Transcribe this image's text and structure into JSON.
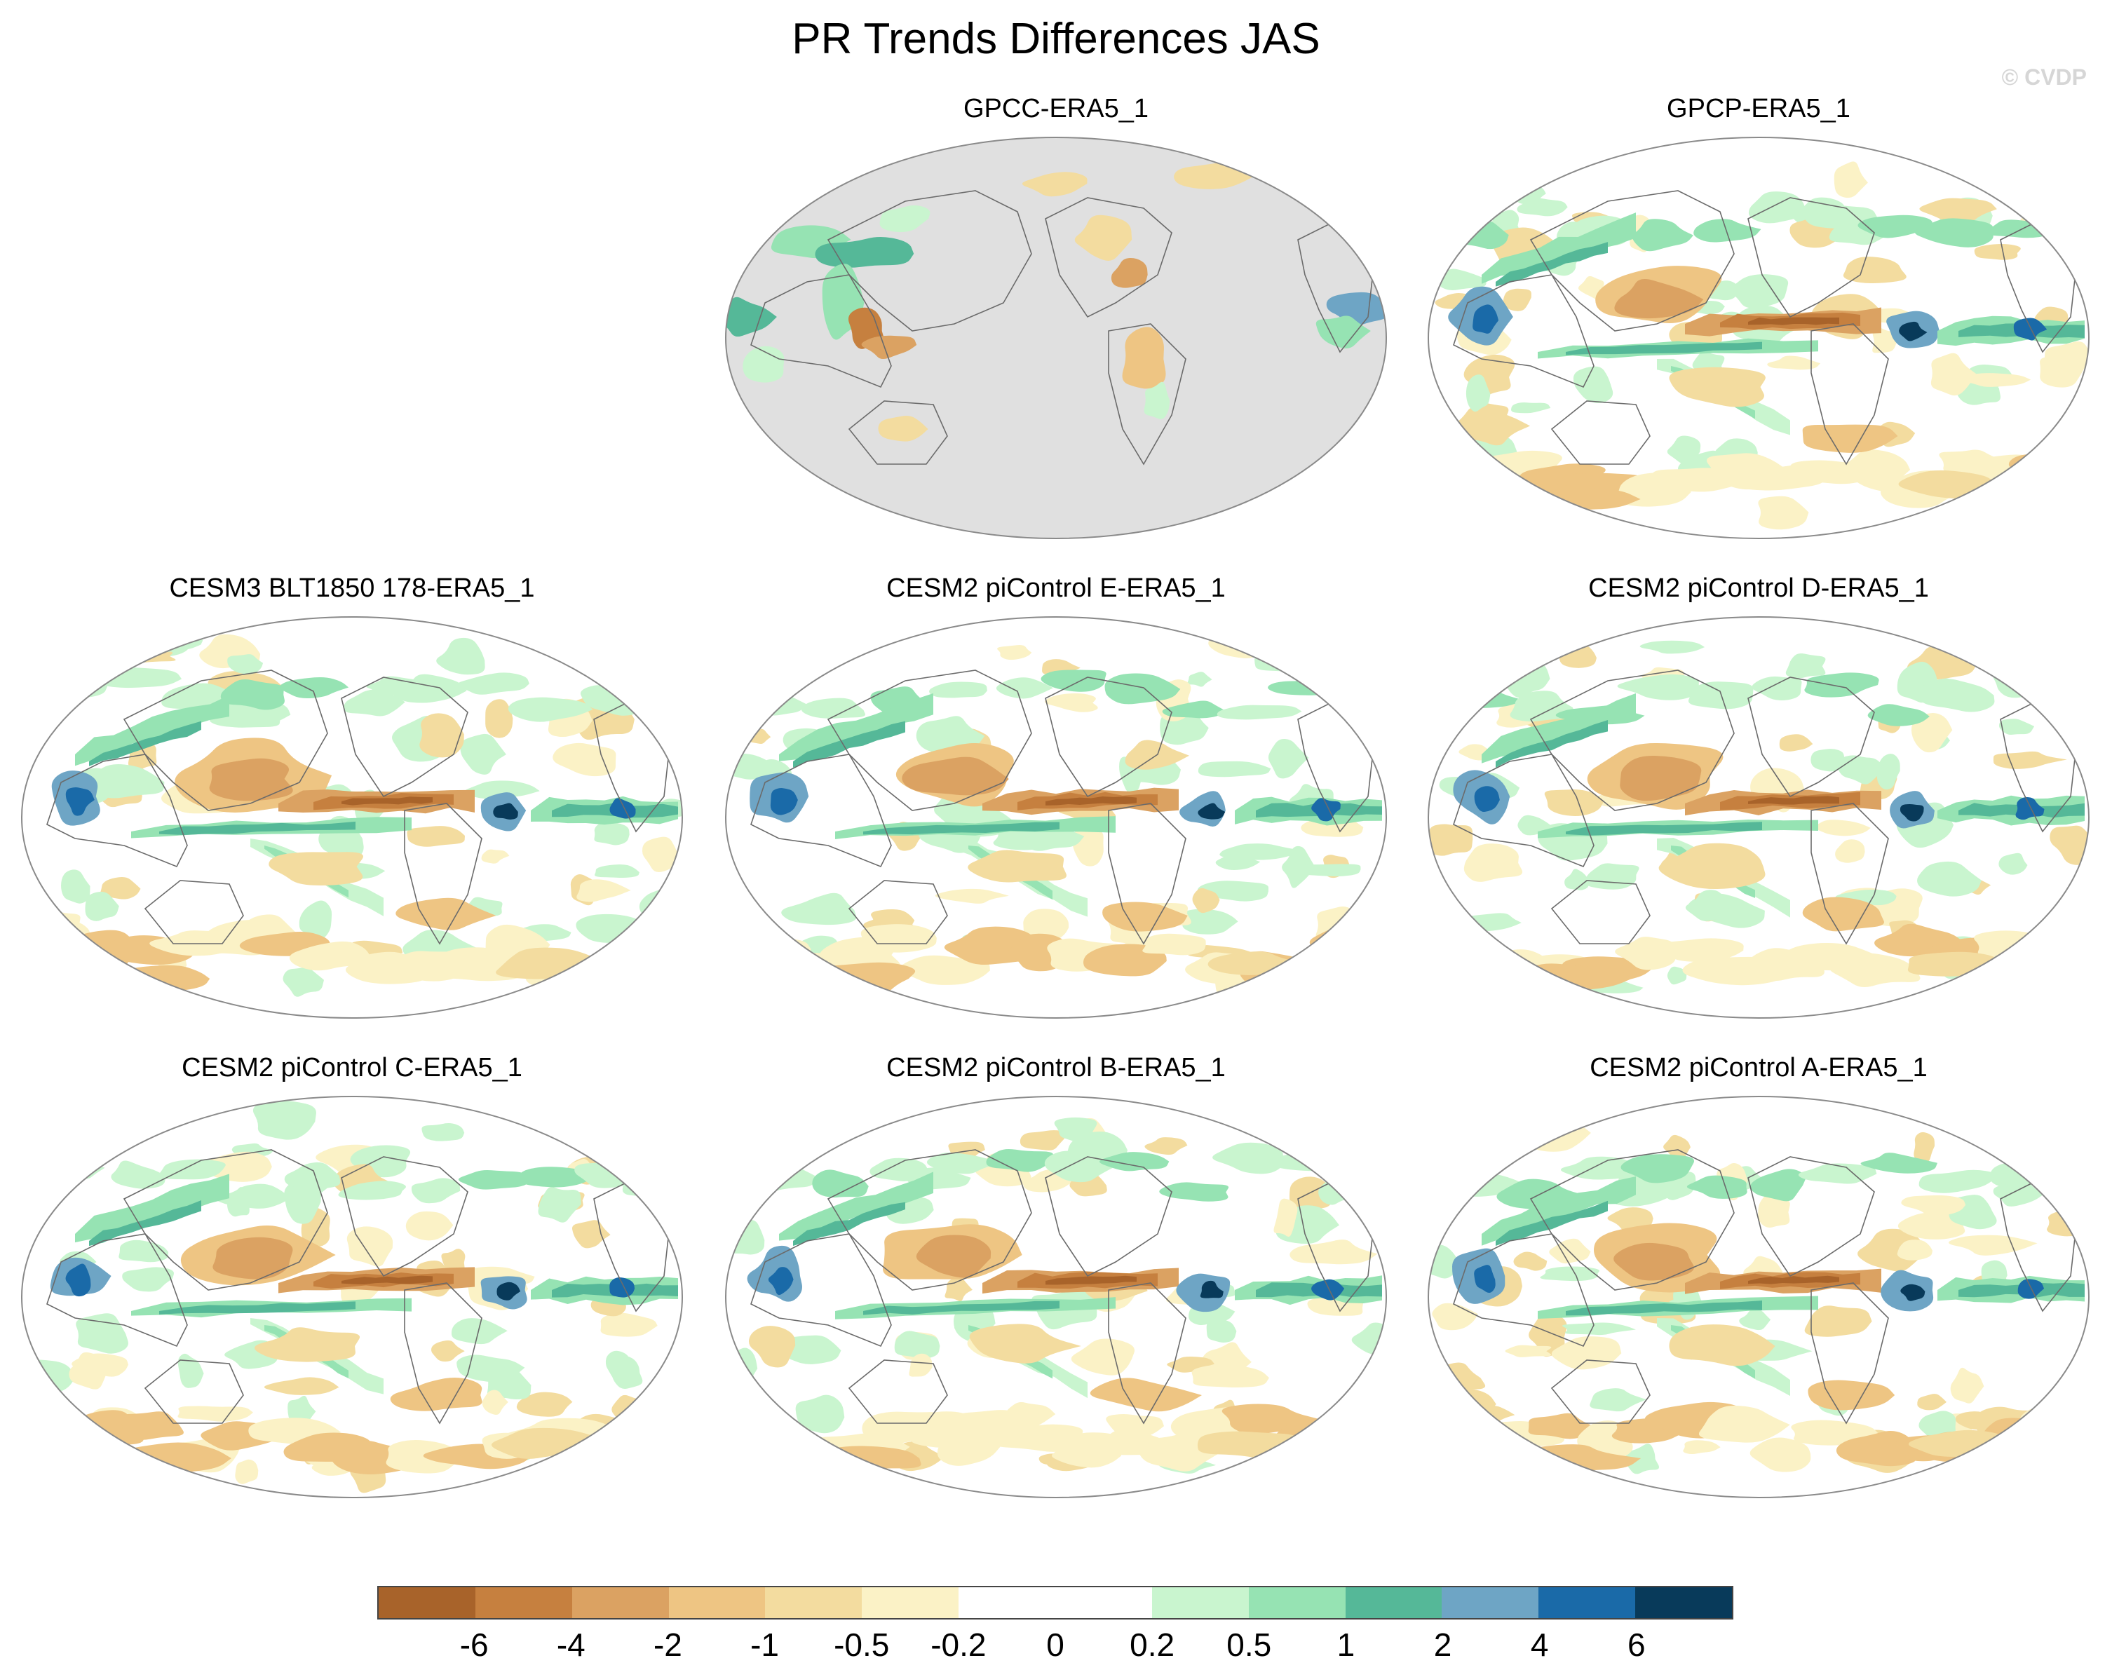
{
  "title": "PR Trends Differences JAS",
  "copyright": "© CVDP",
  "chart_data": {
    "type": "heatmap",
    "title": "PR Trends Differences JAS",
    "projection": "Robinson (Pacific-centered)",
    "panels": [
      {
        "title": "GPCC-ERA5_1",
        "ocean_masked": true
      },
      {
        "title": "GPCP-ERA5_1",
        "ocean_masked": false
      },
      {
        "title": "CESM3 BLT1850 178-ERA5_1",
        "ocean_masked": false
      },
      {
        "title": "CESM2 piControl E-ERA5_1",
        "ocean_masked": false
      },
      {
        "title": "CESM2 piControl D-ERA5_1",
        "ocean_masked": false
      },
      {
        "title": "CESM2 piControl C-ERA5_1",
        "ocean_masked": false
      },
      {
        "title": "CESM2 piControl B-ERA5_1",
        "ocean_masked": false
      },
      {
        "title": "CESM2 piControl A-ERA5_1",
        "ocean_masked": false
      }
    ],
    "colorbar": {
      "levels": [
        "-6",
        "-4",
        "-2",
        "-1",
        "-0.5",
        "-0.2",
        "0",
        "0.2",
        "0.5",
        "1",
        "2",
        "4",
        "6"
      ],
      "colors": [
        "#a8632a",
        "#c6803f",
        "#dba262",
        "#eec583",
        "#f3dc9f",
        "#fbf2c6",
        "#ffffff",
        "#ffffff",
        "#c9f5cf",
        "#96e3b3",
        "#55b898",
        "#6ea5c5",
        "#1a6aa8",
        "#083a5a"
      ]
    },
    "land_color": "#e0e0e0"
  }
}
